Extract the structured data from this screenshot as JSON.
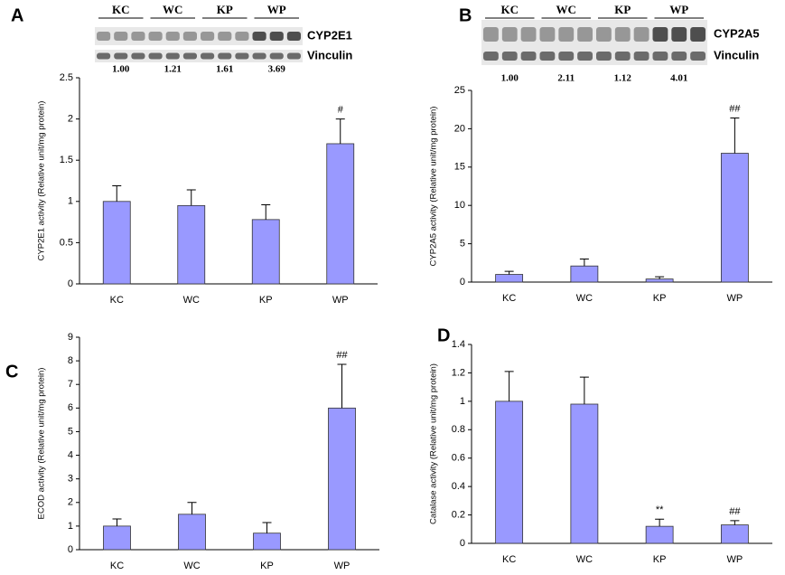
{
  "chart_data": [
    {
      "type": "bar",
      "panel": "A",
      "ylabel": "CYP2E1 activity  (Relative unit/mg protein)",
      "categories": [
        "KC",
        "WC",
        "KP",
        "WP"
      ],
      "values": [
        1.0,
        0.95,
        0.78,
        1.7
      ],
      "errors": [
        0.19,
        0.19,
        0.18,
        0.3
      ],
      "annotations": [
        null,
        null,
        null,
        "#"
      ],
      "color": "#9999ff",
      "ylim": [
        0,
        2.5
      ],
      "yticks": [
        0,
        0.5,
        1,
        1.5,
        2,
        2.5
      ],
      "blot": {
        "lanes": [
          "KC",
          "WC",
          "KP",
          "WP"
        ],
        "proteins": [
          "CYP2E1",
          "Vinculin"
        ],
        "ratios": [
          "1.00",
          "1.21",
          "1.61",
          "3.69"
        ]
      }
    },
    {
      "type": "bar",
      "panel": "B",
      "ylabel": "CYP2A5 activity (Relative unit/mg protein)",
      "categories": [
        "KC",
        "WC",
        "KP",
        "WP"
      ],
      "values": [
        1.0,
        2.1,
        0.4,
        16.8
      ],
      "errors": [
        0.4,
        0.9,
        0.3,
        4.6
      ],
      "annotations": [
        null,
        null,
        null,
        "##"
      ],
      "color": "#9999ff",
      "ylim": [
        0,
        25
      ],
      "yticks": [
        0,
        5,
        10,
        15,
        20,
        25
      ],
      "blot": {
        "lanes": [
          "KC",
          "WC",
          "KP",
          "WP"
        ],
        "proteins": [
          "CYP2A5",
          "Vinculin"
        ],
        "ratios": [
          "1.00",
          "2.11",
          "1.12",
          "4.01"
        ]
      }
    },
    {
      "type": "bar",
      "panel": "C",
      "ylabel": "ECOD activity (Relative unit/mg protein)",
      "categories": [
        "KC",
        "WC",
        "KP",
        "WP"
      ],
      "values": [
        1.0,
        1.5,
        0.7,
        6.0
      ],
      "errors": [
        0.3,
        0.5,
        0.45,
        1.85
      ],
      "annotations": [
        null,
        null,
        null,
        "##"
      ],
      "color": "#9999ff",
      "ylim": [
        0,
        9
      ],
      "yticks": [
        0,
        1,
        2,
        3,
        4,
        5,
        6,
        7,
        8,
        9
      ]
    },
    {
      "type": "bar",
      "panel": "D",
      "ylabel": "Catalase activity (Relative unit/mg protein)",
      "categories": [
        "KC",
        "WC",
        "KP",
        "WP"
      ],
      "values": [
        1.0,
        0.98,
        0.12,
        0.13
      ],
      "errors": [
        0.21,
        0.19,
        0.05,
        0.03
      ],
      "annotations": [
        null,
        null,
        "**",
        "##"
      ],
      "color": "#9999ff",
      "ylim": [
        0,
        1.4
      ],
      "yticks": [
        0,
        0.2,
        0.4,
        0.6,
        0.8,
        1,
        1.2,
        1.4
      ]
    }
  ]
}
